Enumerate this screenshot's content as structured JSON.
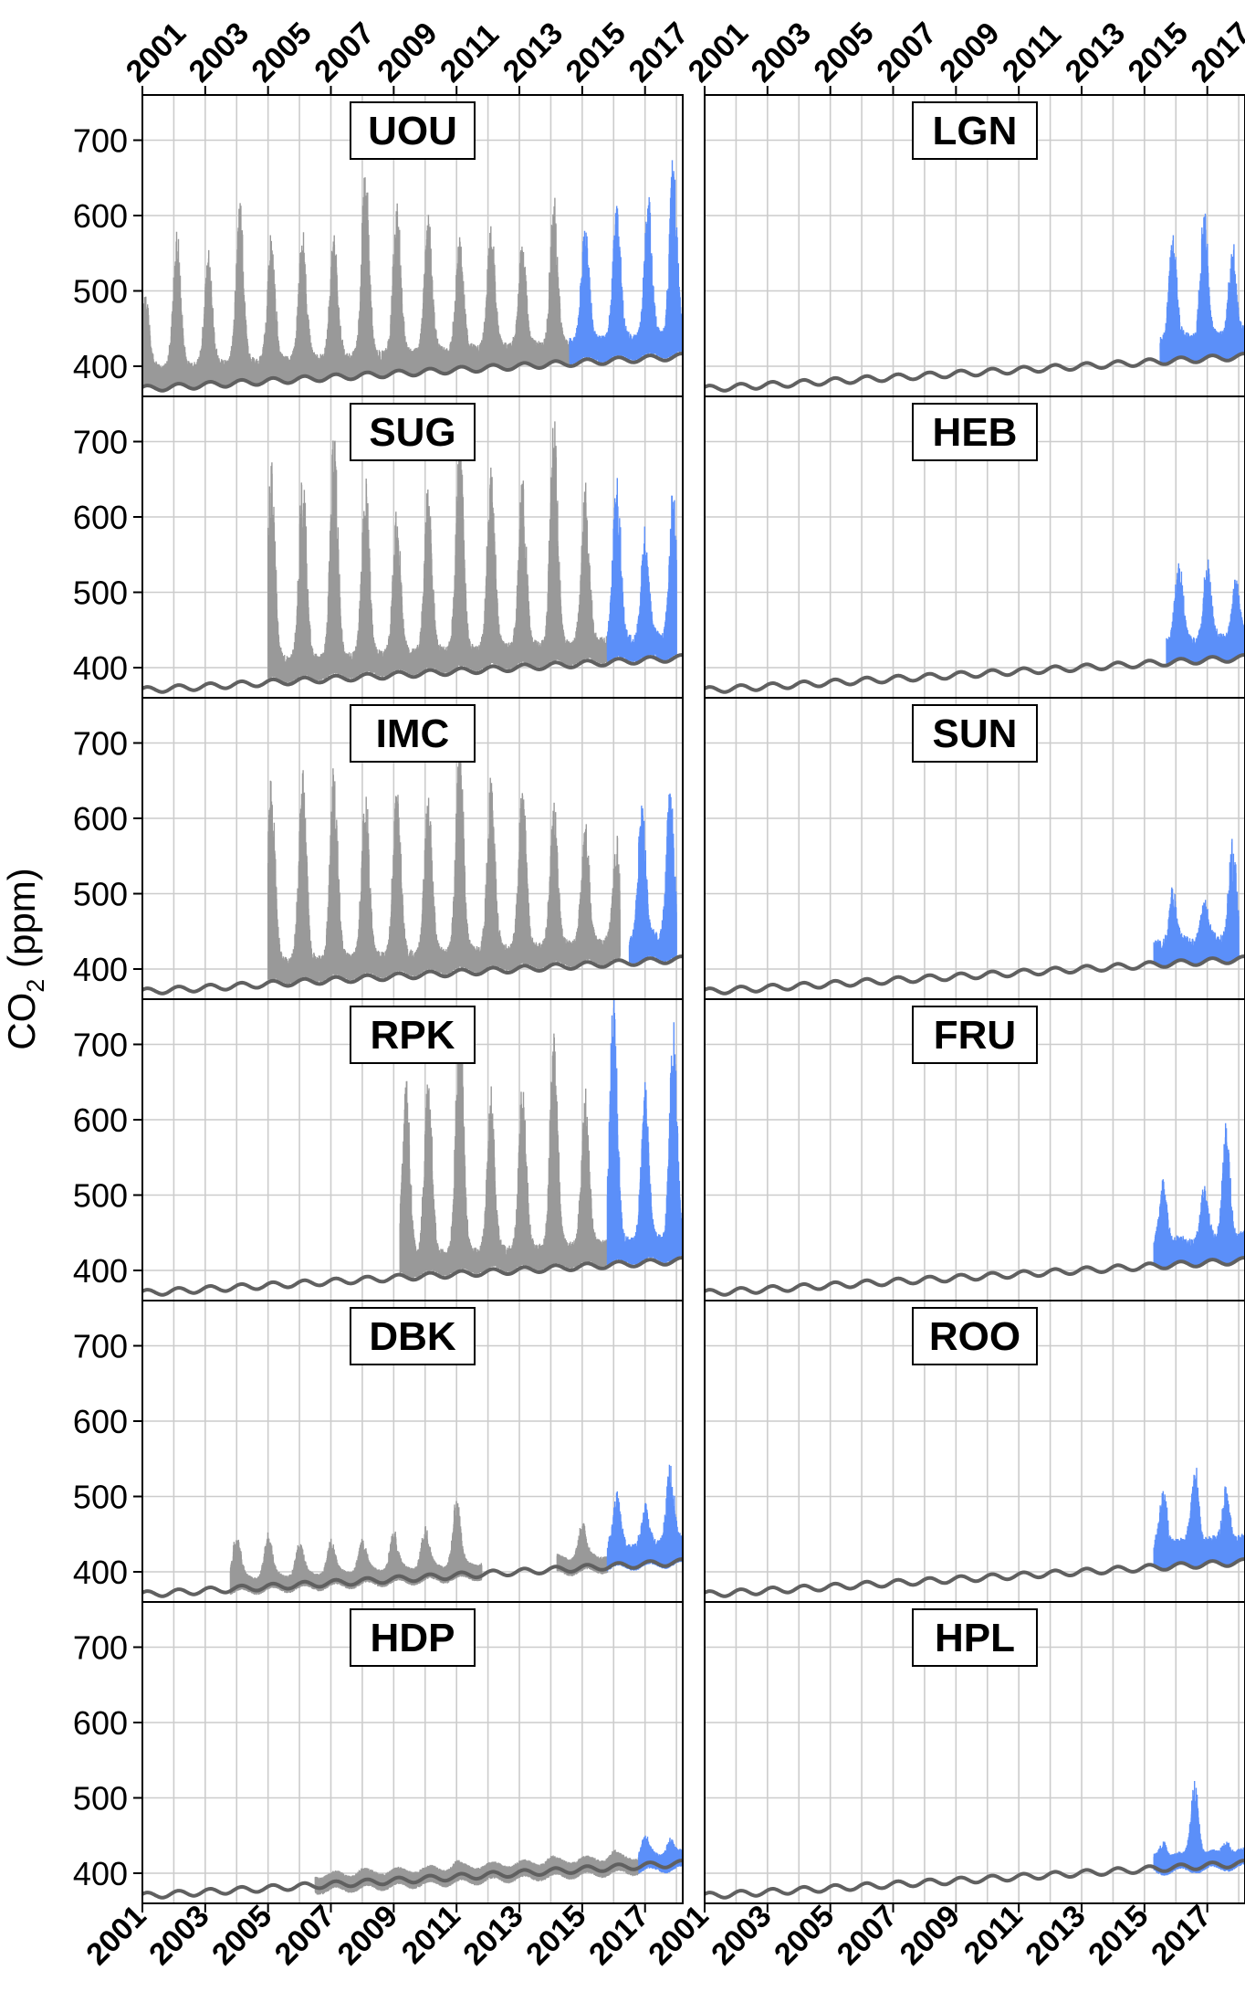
{
  "chart_data": {
    "type": "line",
    "layout": "6 rows x 2 columns of panels, shared axes",
    "ylabel": "CO",
    "ylabel_sub": "2",
    "ylabel_unit": " (ppm)",
    "xlim": [
      2001,
      2018.2
    ],
    "ylim": [
      360,
      760
    ],
    "x_tick_labels": [
      "2001",
      "2003",
      "2005",
      "2007",
      "2009",
      "2011",
      "2013",
      "2015",
      "2017"
    ],
    "y_tick_labels": [
      "400",
      "500",
      "600",
      "700"
    ],
    "grid": true,
    "colors": {
      "historic": "#999999",
      "recent": "#5b8ff9",
      "background_station": "#606060",
      "grid": "#cccccc",
      "frame": "#000000"
    },
    "background_curve": {
      "description": "smooth seasonal background CO2 drawn in every panel",
      "start_value": 370,
      "end_value": 413,
      "seasonal_amplitude": 4
    },
    "panels": [
      {
        "name": "UOU",
        "row": 0,
        "col": 0,
        "series": [
          {
            "color": "historic",
            "start": 2001.0,
            "end": 2014.6,
            "base_offset": 10,
            "annual_peaks": [
              {
                "year": 2001.1,
                "peak": 480
              },
              {
                "year": 2002.1,
                "peak": 558
              },
              {
                "year": 2003.1,
                "peak": 535
              },
              {
                "year": 2004.1,
                "peak": 603
              },
              {
                "year": 2005.1,
                "peak": 560
              },
              {
                "year": 2006.1,
                "peak": 562
              },
              {
                "year": 2007.1,
                "peak": 570
              },
              {
                "year": 2008.1,
                "peak": 650
              },
              {
                "year": 2009.1,
                "peak": 603
              },
              {
                "year": 2010.1,
                "peak": 590
              },
              {
                "year": 2011.1,
                "peak": 555
              },
              {
                "year": 2012.1,
                "peak": 575
              },
              {
                "year": 2013.1,
                "peak": 547
              },
              {
                "year": 2014.1,
                "peak": 608
              }
            ]
          },
          {
            "color": "recent",
            "start": 2014.6,
            "end": 2018.2,
            "base_offset": 12,
            "annual_peaks": [
              {
                "year": 2015.1,
                "peak": 578
              },
              {
                "year": 2016.1,
                "peak": 600
              },
              {
                "year": 2017.1,
                "peak": 608
              },
              {
                "year": 2017.9,
                "peak": 665
              }
            ]
          }
        ]
      },
      {
        "name": "LGN",
        "row": 0,
        "col": 1,
        "series": [
          {
            "color": "recent",
            "start": 2015.5,
            "end": 2018.2,
            "base_offset": 10,
            "annual_peaks": [
              {
                "year": 2015.9,
                "peak": 565
              },
              {
                "year": 2016.9,
                "peak": 592
              },
              {
                "year": 2017.8,
                "peak": 548
              }
            ]
          }
        ]
      },
      {
        "name": "SUG",
        "row": 1,
        "col": 0,
        "series": [
          {
            "color": "historic",
            "start": 2005.0,
            "end": 2015.8,
            "base_offset": 12,
            "annual_peaks": [
              {
                "year": 2005.1,
                "peak": 670
              },
              {
                "year": 2006.1,
                "peak": 650
              },
              {
                "year": 2007.1,
                "peak": 700
              },
              {
                "year": 2008.1,
                "peak": 640
              },
              {
                "year": 2009.1,
                "peak": 590
              },
              {
                "year": 2010.1,
                "peak": 630
              },
              {
                "year": 2011.1,
                "peak": 700
              },
              {
                "year": 2012.1,
                "peak": 650
              },
              {
                "year": 2013.1,
                "peak": 640
              },
              {
                "year": 2014.1,
                "peak": 720
              },
              {
                "year": 2015.1,
                "peak": 630
              }
            ]
          },
          {
            "color": "recent",
            "start": 2015.8,
            "end": 2018.0,
            "base_offset": 12,
            "annual_peaks": [
              {
                "year": 2016.1,
                "peak": 650
              },
              {
                "year": 2017.0,
                "peak": 570
              },
              {
                "year": 2017.9,
                "peak": 628
              }
            ]
          }
        ]
      },
      {
        "name": "HEB",
        "row": 1,
        "col": 1,
        "series": [
          {
            "color": "recent",
            "start": 2015.7,
            "end": 2018.2,
            "base_offset": 10,
            "annual_peaks": [
              {
                "year": 2016.1,
                "peak": 540
              },
              {
                "year": 2017.0,
                "peak": 525
              },
              {
                "year": 2017.9,
                "peak": 500
              }
            ]
          }
        ]
      },
      {
        "name": "IMC",
        "row": 2,
        "col": 0,
        "series": [
          {
            "color": "historic",
            "start": 2005.0,
            "end": 2016.2,
            "base_offset": 12,
            "annual_peaks": [
              {
                "year": 2005.1,
                "peak": 640
              },
              {
                "year": 2006.1,
                "peak": 650
              },
              {
                "year": 2007.1,
                "peak": 660
              },
              {
                "year": 2008.1,
                "peak": 625
              },
              {
                "year": 2009.1,
                "peak": 640
              },
              {
                "year": 2010.1,
                "peak": 620
              },
              {
                "year": 2011.1,
                "peak": 695
              },
              {
                "year": 2012.1,
                "peak": 645
              },
              {
                "year": 2013.1,
                "peak": 635
              },
              {
                "year": 2014.1,
                "peak": 600
              },
              {
                "year": 2015.1,
                "peak": 580
              },
              {
                "year": 2016.1,
                "peak": 560
              }
            ]
          },
          {
            "color": "recent",
            "start": 2016.5,
            "end": 2018.0,
            "base_offset": 12,
            "annual_peaks": [
              {
                "year": 2016.9,
                "peak": 612
              },
              {
                "year": 2017.8,
                "peak": 625
              }
            ]
          }
        ]
      },
      {
        "name": "SUN",
        "row": 2,
        "col": 1,
        "series": [
          {
            "color": "recent",
            "start": 2015.3,
            "end": 2018.0,
            "base_offset": 8,
            "annual_peaks": [
              {
                "year": 2015.9,
                "peak": 490
              },
              {
                "year": 2016.9,
                "peak": 477
              },
              {
                "year": 2017.8,
                "peak": 555
              }
            ]
          }
        ]
      },
      {
        "name": "RPK",
        "row": 3,
        "col": 0,
        "series": [
          {
            "color": "historic",
            "start": 2009.2,
            "end": 2015.8,
            "base_offset": 12,
            "annual_peaks": [
              {
                "year": 2009.4,
                "peak": 640
              },
              {
                "year": 2010.1,
                "peak": 650
              },
              {
                "year": 2011.1,
                "peak": 745
              },
              {
                "year": 2012.1,
                "peak": 620
              },
              {
                "year": 2013.1,
                "peak": 630
              },
              {
                "year": 2014.1,
                "peak": 700
              },
              {
                "year": 2015.1,
                "peak": 620
              }
            ]
          },
          {
            "color": "recent",
            "start": 2015.8,
            "end": 2018.2,
            "base_offset": 12,
            "annual_peaks": [
              {
                "year": 2016.0,
                "peak": 760
              },
              {
                "year": 2017.0,
                "peak": 630
              },
              {
                "year": 2017.9,
                "peak": 710
              }
            ]
          }
        ]
      },
      {
        "name": "FRU",
        "row": 3,
        "col": 1,
        "series": [
          {
            "color": "recent",
            "start": 2015.3,
            "end": 2018.2,
            "base_offset": 10,
            "annual_peaks": [
              {
                "year": 2015.6,
                "peak": 505
              },
              {
                "year": 2016.9,
                "peak": 495
              },
              {
                "year": 2017.6,
                "peak": 578
              }
            ]
          }
        ]
      },
      {
        "name": "DBK",
        "row": 4,
        "col": 0,
        "series": [
          {
            "color": "historic",
            "start": 2003.8,
            "end": 2011.8,
            "base_offset": 4,
            "annual_peaks": [
              {
                "year": 2004.0,
                "peak": 445
              },
              {
                "year": 2005.0,
                "peak": 442
              },
              {
                "year": 2006.0,
                "peak": 430
              },
              {
                "year": 2007.0,
                "peak": 432
              },
              {
                "year": 2008.0,
                "peak": 435
              },
              {
                "year": 2009.0,
                "peak": 445
              },
              {
                "year": 2010.0,
                "peak": 452
              },
              {
                "year": 2011.0,
                "peak": 490
              }
            ]
          },
          {
            "color": "historic",
            "start": 2014.2,
            "end": 2015.8,
            "base_offset": 4,
            "annual_peaks": [
              {
                "year": 2015.0,
                "peak": 455
              }
            ]
          },
          {
            "color": "recent",
            "start": 2015.8,
            "end": 2018.2,
            "base_offset": 6,
            "annual_peaks": [
              {
                "year": 2016.1,
                "peak": 488
              },
              {
                "year": 2017.0,
                "peak": 470
              },
              {
                "year": 2017.8,
                "peak": 530
              }
            ]
          }
        ]
      },
      {
        "name": "ROO",
        "row": 4,
        "col": 1,
        "series": [
          {
            "color": "recent",
            "start": 2015.3,
            "end": 2018.2,
            "base_offset": 8,
            "annual_peaks": [
              {
                "year": 2015.6,
                "peak": 495
              },
              {
                "year": 2016.6,
                "peak": 527
              },
              {
                "year": 2017.6,
                "peak": 495
              }
            ]
          }
        ]
      },
      {
        "name": "HDP",
        "row": 5,
        "col": 0,
        "series": [
          {
            "color": "historic",
            "start": 2006.5,
            "end": 2016.8,
            "base_offset": 1,
            "annual_peaks": [
              {
                "year": 2008.0,
                "peak": 395
              },
              {
                "year": 2011.0,
                "peak": 405
              },
              {
                "year": 2014.0,
                "peak": 410
              },
              {
                "year": 2016.0,
                "peak": 418
              }
            ]
          },
          {
            "color": "recent",
            "start": 2016.8,
            "end": 2018.2,
            "base_offset": 2,
            "annual_peaks": [
              {
                "year": 2017.0,
                "peak": 440
              },
              {
                "year": 2017.8,
                "peak": 435
              }
            ]
          }
        ]
      },
      {
        "name": "HPL",
        "row": 5,
        "col": 1,
        "series": [
          {
            "color": "recent",
            "start": 2015.3,
            "end": 2018.2,
            "base_offset": 4,
            "annual_peaks": [
              {
                "year": 2015.6,
                "peak": 432
              },
              {
                "year": 2016.6,
                "peak": 512
              },
              {
                "year": 2017.6,
                "peak": 432
              }
            ]
          }
        ]
      }
    ]
  }
}
